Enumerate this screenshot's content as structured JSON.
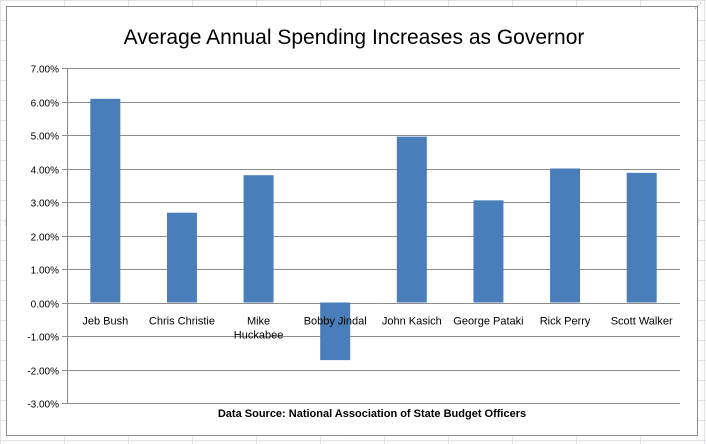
{
  "chart_data": {
    "type": "bar",
    "title": "Average Annual Spending Increases as Governor",
    "source_note": "Data Source:  National Association  of State Budget Officers",
    "categories": [
      [
        "Jeb Bush"
      ],
      [
        "Chris Christie"
      ],
      [
        "Mike",
        "Huckabee"
      ],
      [
        "Bobby Jindal"
      ],
      [
        "John Kasich"
      ],
      [
        "George Pataki"
      ],
      [
        "Rick Perry"
      ],
      [
        "Scott Walker"
      ]
    ],
    "values": [
      6.08,
      2.68,
      3.8,
      -1.72,
      4.95,
      3.05,
      4.0,
      3.87
    ],
    "ylim": [
      -3.0,
      7.0
    ],
    "yticks": [
      "7.00%",
      "6.00%",
      "5.00%",
      "4.00%",
      "3.00%",
      "2.00%",
      "1.00%",
      "0.00%",
      "-1.00%",
      "-2.00%",
      "-3.00%"
    ],
    "ytick_values": [
      7,
      6,
      5,
      4,
      3,
      2,
      1,
      0,
      -1,
      -2,
      -3
    ],
    "grid": true,
    "bar_color": "#4a7ebb",
    "grid_color": "#8c8c8c"
  }
}
